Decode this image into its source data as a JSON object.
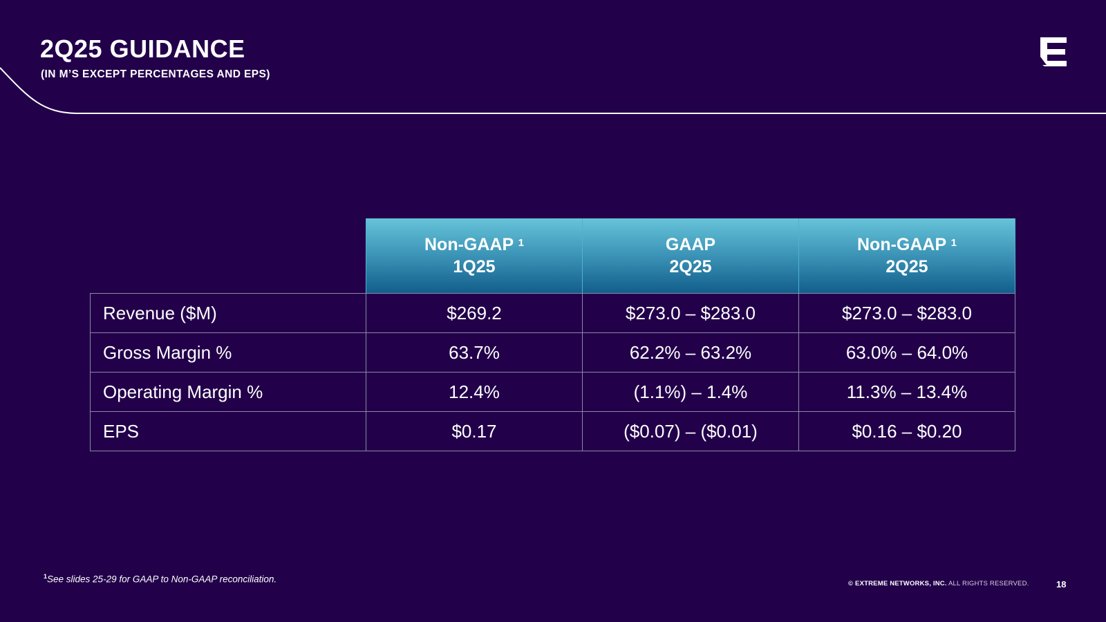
{
  "slide": {
    "title": "2Q25 GUIDANCE",
    "subtitle": "(IN M’S EXCEPT PERCENTAGES AND EPS)"
  },
  "logo": {
    "icon": "extreme-networks-logo-icon"
  },
  "table": {
    "columns": [
      {
        "line1": "Non-GAAP",
        "sup": "1",
        "line2": "1Q25"
      },
      {
        "line1": "GAAP",
        "sup": "",
        "line2": "2Q25"
      },
      {
        "line1": "Non-GAAP",
        "sup": "1",
        "line2": "2Q25"
      }
    ],
    "rows": [
      {
        "label": "Revenue ($M)",
        "values": [
          "$269.2",
          "$273.0 – $283.0",
          "$273.0 – $283.0"
        ]
      },
      {
        "label": "Gross Margin %",
        "values": [
          "63.7%",
          "62.2% – 63.2%",
          "63.0% – 64.0%"
        ]
      },
      {
        "label": "Operating Margin %",
        "values": [
          "12.4%",
          "(1.1%) – 1.4%",
          "11.3% – 13.4%"
        ]
      },
      {
        "label": "EPS",
        "values": [
          "$0.17",
          "($0.07) – ($0.01)",
          "$0.16 – $0.20"
        ]
      }
    ]
  },
  "footer": {
    "footnote_marker": "1",
    "footnote": "See slides 25-29 for GAAP to Non-GAAP reconciliation.",
    "copyright_bold": "© EXTREME NETWORKS, INC.",
    "copyright_rest": " ALL RIGHTS RESERVED.",
    "page_number": "18"
  },
  "colors": {
    "background": "#22004a",
    "header_gradient_top": "#66c4d9",
    "header_gradient_bottom": "#125e8c",
    "grid_line": "#8f87a8"
  }
}
